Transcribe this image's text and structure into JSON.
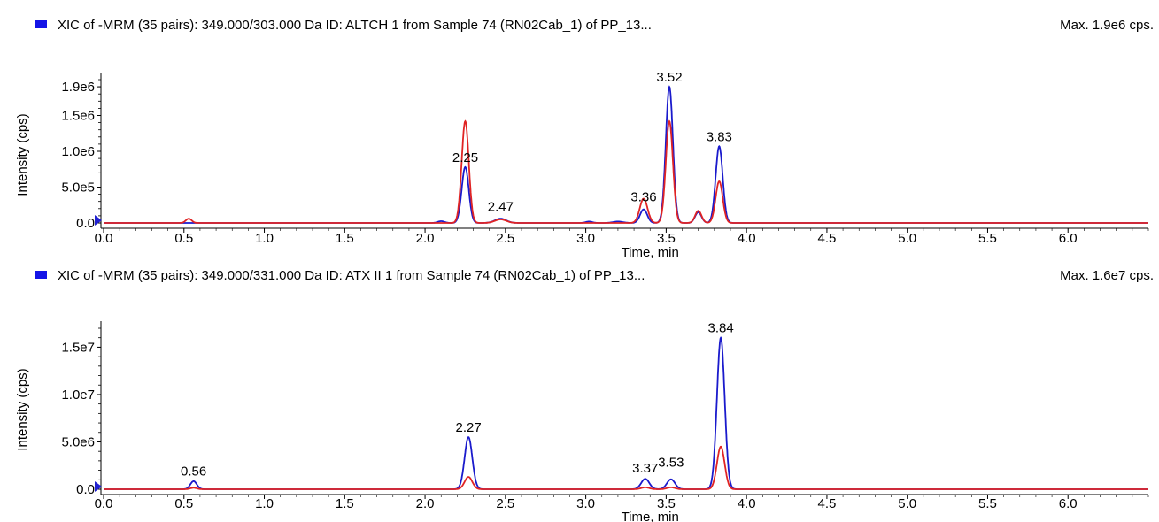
{
  "colors": {
    "blue": "#1a1acc",
    "red": "#e02424",
    "swatch": "#1414e6",
    "marker": "#2020d0"
  },
  "chart_data": [
    {
      "type": "line",
      "title": "XIC of -MRM (35 pairs): 349.000/303.000 Da ID: ALTCH 1 from Sample 74 (RN02Cab_1) of PP_13...",
      "max_label": "Max. 1.9e6 cps.",
      "xlabel": "Time, min",
      "ylabel": "Intensity (cps)",
      "xlim": [
        0,
        6.5
      ],
      "ylim": [
        0,
        2000000
      ],
      "x_ticks": [
        {
          "value": 0.0,
          "label": "0.0"
        },
        {
          "value": 0.5,
          "label": "0.5"
        },
        {
          "value": 1.0,
          "label": "1.0"
        },
        {
          "value": 1.5,
          "label": "1.5"
        },
        {
          "value": 2.0,
          "label": "2.0"
        },
        {
          "value": 2.5,
          "label": "2.5"
        },
        {
          "value": 3.0,
          "label": "3.0"
        },
        {
          "value": 3.5,
          "label": "3.5"
        },
        {
          "value": 4.0,
          "label": "4.0"
        },
        {
          "value": 4.5,
          "label": "4.5"
        },
        {
          "value": 5.0,
          "label": "5.0"
        },
        {
          "value": 5.5,
          "label": "5.5"
        },
        {
          "value": 6.0,
          "label": "6.0"
        }
      ],
      "y_ticks": [
        {
          "value": 0,
          "label": "0.0"
        },
        {
          "value": 500000,
          "label": "5.0e5"
        },
        {
          "value": 1000000,
          "label": "1.0e6"
        },
        {
          "value": 1500000,
          "label": "1.5e6"
        },
        {
          "value": 1900000,
          "label": "1.9e6"
        }
      ],
      "peak_labels": [
        {
          "x": 2.25,
          "y": 780000,
          "label": "2.25"
        },
        {
          "x": 2.47,
          "y": 90000,
          "label": "2.47"
        },
        {
          "x": 3.36,
          "y": 230000,
          "label": "3.36"
        },
        {
          "x": 3.52,
          "y": 1900000,
          "label": "3.52"
        },
        {
          "x": 3.83,
          "y": 1070000,
          "label": "3.83"
        }
      ],
      "series": [
        {
          "color": "blue",
          "peaks": [
            {
              "rt": 2.1,
              "h": 25000,
              "w": 0.02
            },
            {
              "rt": 2.25,
              "h": 780000,
              "w": 0.022
            },
            {
              "rt": 2.47,
              "h": 60000,
              "w": 0.035
            },
            {
              "rt": 3.02,
              "h": 20000,
              "w": 0.02
            },
            {
              "rt": 3.2,
              "h": 20000,
              "w": 0.03
            },
            {
              "rt": 3.36,
              "h": 190000,
              "w": 0.022
            },
            {
              "rt": 3.52,
              "h": 1900000,
              "w": 0.022
            },
            {
              "rt": 3.7,
              "h": 150000,
              "w": 0.02
            },
            {
              "rt": 3.83,
              "h": 1070000,
              "w": 0.022
            }
          ]
        },
        {
          "color": "red",
          "peaks": [
            {
              "rt": 0.53,
              "h": 60000,
              "w": 0.018
            },
            {
              "rt": 2.25,
              "h": 1420000,
              "w": 0.022
            },
            {
              "rt": 2.47,
              "h": 50000,
              "w": 0.035
            },
            {
              "rt": 3.36,
              "h": 340000,
              "w": 0.024
            },
            {
              "rt": 3.52,
              "h": 1420000,
              "w": 0.022
            },
            {
              "rt": 3.7,
              "h": 170000,
              "w": 0.02
            },
            {
              "rt": 3.83,
              "h": 580000,
              "w": 0.022
            }
          ]
        }
      ]
    },
    {
      "type": "line",
      "title": "XIC of -MRM (35 pairs): 349.000/331.000 Da ID: ATX II 1 from Sample 74 (RN02Cab_1) of PP_13...",
      "max_label": "Max. 1.6e7 cps.",
      "xlabel": "Time, min",
      "ylabel": "Intensity (cps)",
      "xlim": [
        0,
        6.5
      ],
      "ylim": [
        0,
        17000000
      ],
      "x_ticks": [
        {
          "value": 0.0,
          "label": "0.0"
        },
        {
          "value": 0.5,
          "label": "0.5"
        },
        {
          "value": 1.0,
          "label": "1.0"
        },
        {
          "value": 1.5,
          "label": "1.5"
        },
        {
          "value": 2.0,
          "label": "2.0"
        },
        {
          "value": 2.5,
          "label": "2.5"
        },
        {
          "value": 3.0,
          "label": "3.0"
        },
        {
          "value": 3.5,
          "label": "3.5"
        },
        {
          "value": 4.0,
          "label": "4.0"
        },
        {
          "value": 4.5,
          "label": "4.5"
        },
        {
          "value": 5.0,
          "label": "5.0"
        },
        {
          "value": 5.5,
          "label": "5.5"
        },
        {
          "value": 6.0,
          "label": "6.0"
        }
      ],
      "y_ticks": [
        {
          "value": 0,
          "label": "0.0"
        },
        {
          "value": 5000000,
          "label": "5.0e6"
        },
        {
          "value": 10000000,
          "label": "1.0e7"
        },
        {
          "value": 15000000,
          "label": "1.5e7"
        }
      ],
      "peak_labels": [
        {
          "x": 0.56,
          "y": 900000,
          "label": "0.56"
        },
        {
          "x": 2.27,
          "y": 5500000,
          "label": "2.27"
        },
        {
          "x": 3.37,
          "y": 1200000,
          "label": "3.37"
        },
        {
          "x": 3.53,
          "y": 1800000,
          "label": "3.53"
        },
        {
          "x": 3.84,
          "y": 16000000,
          "label": "3.84"
        }
      ],
      "series": [
        {
          "color": "blue",
          "peaks": [
            {
              "rt": 0.56,
              "h": 850000,
              "w": 0.02
            },
            {
              "rt": 2.27,
              "h": 5500000,
              "w": 0.024
            },
            {
              "rt": 3.37,
              "h": 1100000,
              "w": 0.025
            },
            {
              "rt": 3.53,
              "h": 1050000,
              "w": 0.025
            },
            {
              "rt": 3.84,
              "h": 16000000,
              "w": 0.024
            }
          ]
        },
        {
          "color": "red",
          "peaks": [
            {
              "rt": 0.56,
              "h": 150000,
              "w": 0.02
            },
            {
              "rt": 2.27,
              "h": 1300000,
              "w": 0.024
            },
            {
              "rt": 3.37,
              "h": 200000,
              "w": 0.025
            },
            {
              "rt": 3.53,
              "h": 200000,
              "w": 0.025
            },
            {
              "rt": 3.84,
              "h": 4500000,
              "w": 0.024
            }
          ]
        }
      ]
    }
  ]
}
